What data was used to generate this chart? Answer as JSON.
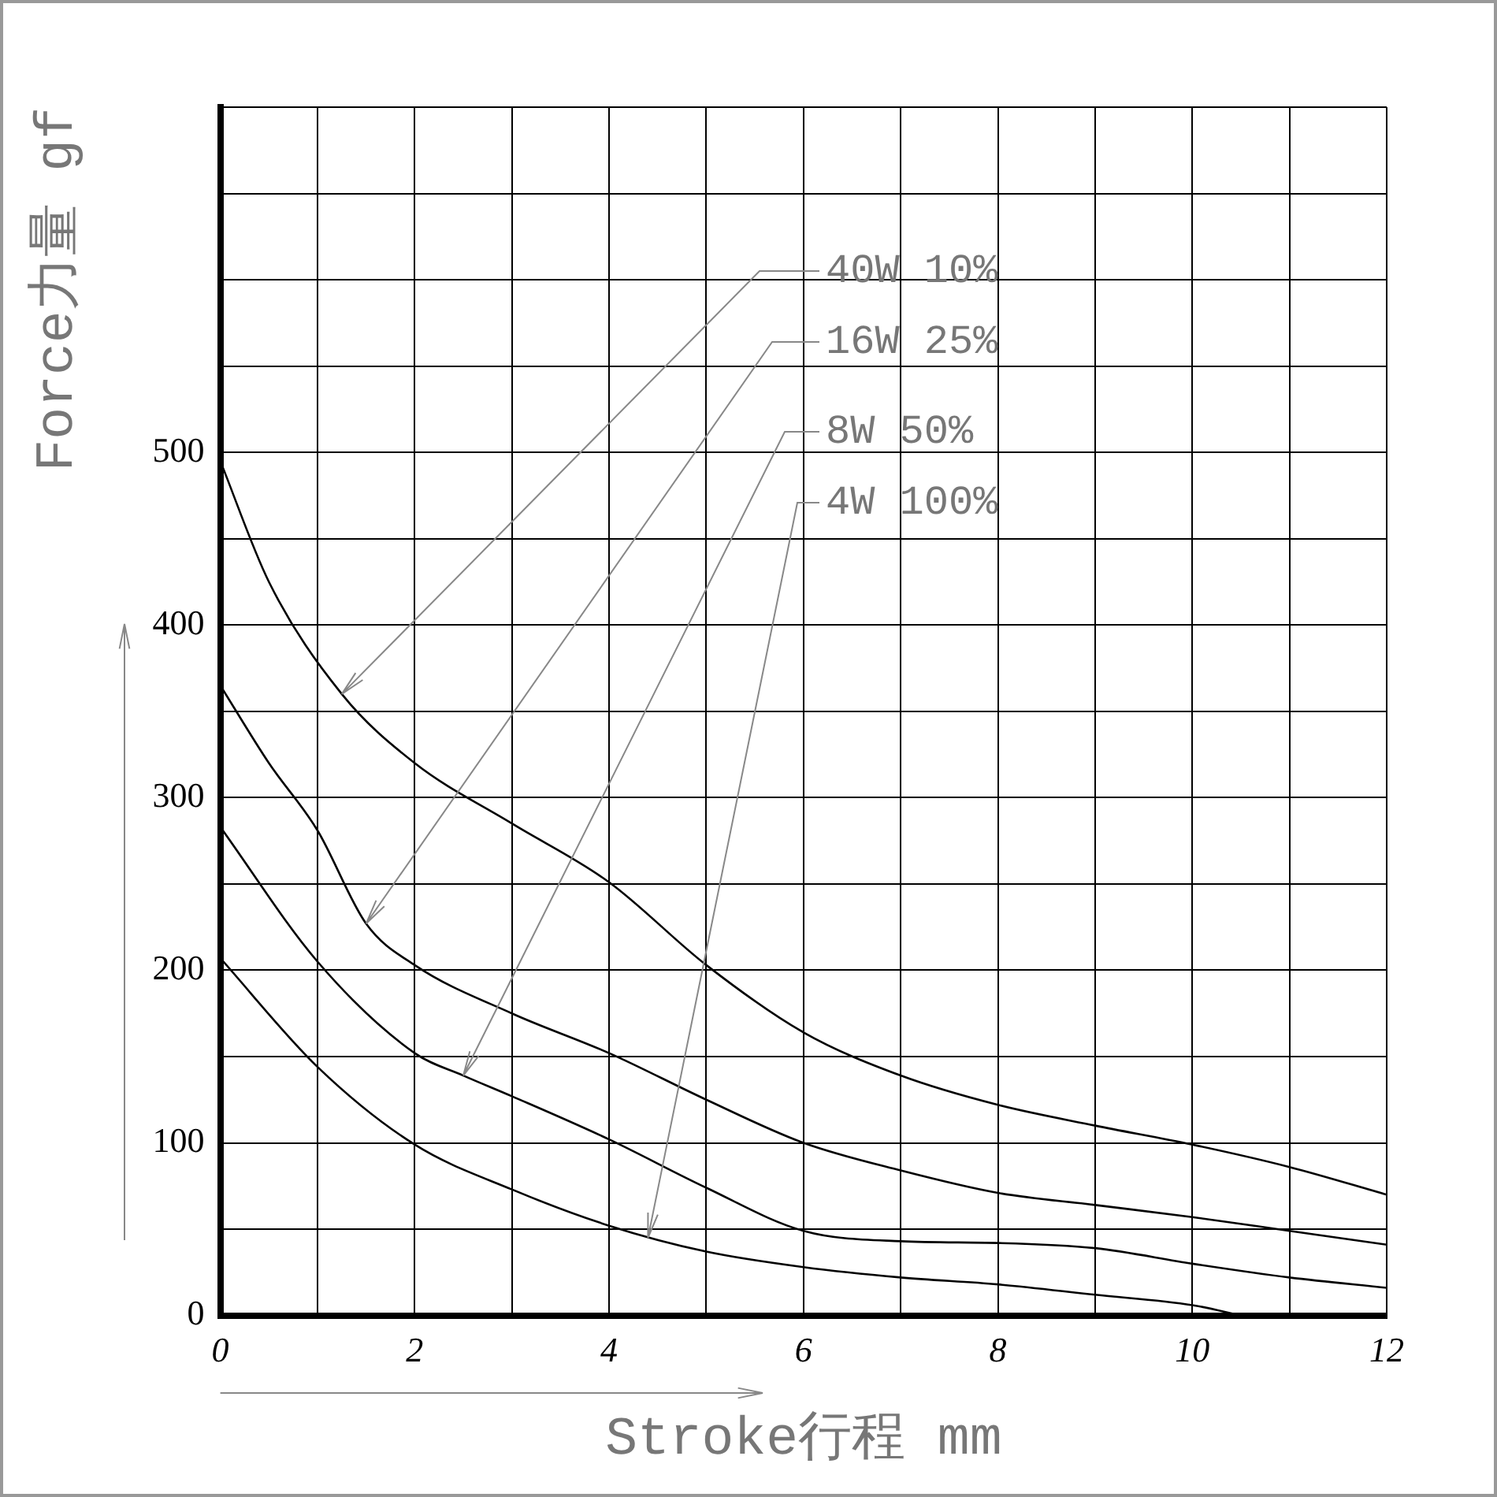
{
  "chart_data": {
    "type": "line",
    "xlabel": "Stroke行程 mm",
    "ylabel": "Force力量 gf",
    "xlim": [
      0,
      12
    ],
    "xticks": [
      0,
      {
        "value": 1,
        "label": null
      },
      2,
      {
        "value": 3,
        "label": null
      },
      4,
      {
        "value": 5,
        "label": null
      },
      6,
      {
        "value": 7,
        "label": null
      },
      8,
      {
        "value": 9,
        "label": null
      },
      10,
      {
        "value": 11,
        "label": null
      },
      12
    ],
    "ylim": [
      0,
      700
    ],
    "yticks": [
      0,
      {
        "value": 50,
        "label": null
      },
      100,
      {
        "value": 150,
        "label": null
      },
      200,
      {
        "value": 250,
        "label": null
      },
      300,
      {
        "value": 350,
        "label": null
      },
      400,
      {
        "value": 450,
        "label": null
      },
      500,
      {
        "value": 550,
        "label": null
      },
      {
        "value": 600,
        "label": null
      },
      {
        "value": 650,
        "label": null
      },
      {
        "value": 700,
        "label": null
      }
    ],
    "grid": true,
    "legend": false,
    "marker": "none",
    "line_style": "solid",
    "series": [
      {
        "color": "#000000",
        "x": [
          0,
          0.5,
          1.25,
          2,
          3,
          4,
          5,
          6,
          7,
          8,
          9,
          10,
          11,
          12
        ],
        "values": [
          495,
          425,
          360,
          320,
          285,
          251,
          203,
          164,
          139,
          122,
          110,
          99,
          86,
          70
        ]
      },
      {
        "color": "#000000",
        "x": [
          0,
          0.5,
          1,
          1.5,
          2,
          3,
          4,
          5,
          6,
          7,
          8,
          9,
          10,
          11,
          12
        ],
        "values": [
          365,
          320,
          281,
          227,
          203,
          175,
          152,
          125,
          100,
          84,
          71,
          64,
          57,
          49,
          41
        ]
      },
      {
        "color": "#000000",
        "x": [
          0,
          1,
          2,
          2.5,
          3,
          4,
          5,
          6,
          7,
          8,
          9,
          10,
          11,
          12
        ],
        "values": [
          283,
          205,
          152,
          139,
          127,
          102,
          74,
          49,
          43,
          42,
          39,
          30,
          22,
          16
        ]
      },
      {
        "color": "#000000",
        "x": [
          0,
          1,
          2,
          3,
          4,
          5,
          6,
          7,
          8,
          9,
          10,
          10.5
        ],
        "values": [
          207,
          144,
          99,
          73,
          52,
          37,
          28,
          22,
          18,
          12,
          6,
          0
        ]
      }
    ],
    "annotations": [
      {
        "text": "40W 10%",
        "x": 1.25,
        "y": 360
      },
      {
        "text": "16W 25%",
        "x": 1.5,
        "y": 227
      },
      {
        "text": "8W 50%",
        "x": 2.5,
        "y": 139
      },
      {
        "text": "4W 100%",
        "x": 4.4,
        "y": 45
      }
    ]
  }
}
